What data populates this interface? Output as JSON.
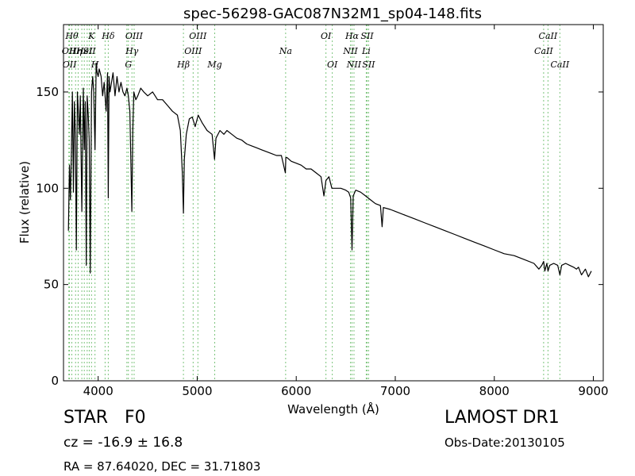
{
  "chart_data": {
    "type": "line",
    "title": "spec-56298-GAC087N32M1_sp04-148.fits",
    "xlabel": "Wavelength (Å)",
    "ylabel": "Flux (relative)",
    "xlim": [
      3650,
      9100
    ],
    "ylim": [
      0,
      185
    ],
    "xticks": [
      4000,
      5000,
      6000,
      7000,
      8000,
      9000
    ],
    "yticks": [
      0,
      50,
      100,
      150
    ],
    "grid": false,
    "line_color": "#000000",
    "marker_line_color": "#7cc47c",
    "series": [
      {
        "x": [
          3700,
          3710,
          3720,
          3730,
          3740,
          3750,
          3760,
          3770,
          3780,
          3790,
          3800,
          3810,
          3820,
          3835,
          3850,
          3860,
          3870,
          3880,
          3889,
          3900,
          3910,
          3920,
          3933,
          3945,
          3955,
          3968,
          3980,
          3990,
          4000,
          4010,
          4020,
          4030,
          4045,
          4060,
          4080,
          4095,
          4102,
          4110,
          4120,
          4135,
          4150,
          4170,
          4190,
          4210,
          4230,
          4250,
          4270,
          4290,
          4305,
          4320,
          4340,
          4350,
          4360,
          4380,
          4400,
          4430,
          4460,
          4500,
          4550,
          4600,
          4650,
          4700,
          4750,
          4800,
          4830,
          4850,
          4861,
          4870,
          4890,
          4920,
          4950,
          4980,
          5010,
          5050,
          5100,
          5150,
          5175,
          5190,
          5230,
          5270,
          5300,
          5350,
          5400,
          5450,
          5500,
          5550,
          5600,
          5650,
          5700,
          5750,
          5800,
          5850,
          5890,
          5895,
          5905,
          5950,
          6000,
          6050,
          6100,
          6150,
          6200,
          6250,
          6280,
          6300,
          6330,
          6360,
          6400,
          6450,
          6500,
          6530,
          6550,
          6563,
          6575,
          6600,
          6650,
          6700,
          6750,
          6800,
          6850,
          6867,
          6880,
          6950,
          7000,
          7100,
          7200,
          7300,
          7400,
          7500,
          7600,
          7700,
          7800,
          7900,
          8000,
          8100,
          8200,
          8300,
          8400,
          8450,
          8480,
          8498,
          8510,
          8530,
          8542,
          8560,
          8600,
          8640,
          8662,
          8680,
          8720,
          8760,
          8800,
          8830,
          8850,
          8880,
          8920,
          8950,
          8980
        ],
        "values": [
          78,
          112,
          94,
          120,
          150,
          98,
          145,
          128,
          68,
          150,
          140,
          128,
          148,
          88,
          152,
          120,
          145,
          60,
          148,
          138,
          125,
          56,
          150,
          158,
          150,
          120,
          165,
          160,
          158,
          162,
          160,
          158,
          148,
          155,
          140,
          160,
          95,
          158,
          150,
          155,
          160,
          148,
          158,
          150,
          155,
          150,
          148,
          152,
          148,
          140,
          88,
          130,
          150,
          146,
          148,
          152,
          150,
          148,
          150,
          146,
          146,
          143,
          140,
          138,
          130,
          108,
          87,
          115,
          128,
          136,
          137,
          132,
          138,
          134,
          130,
          128,
          115,
          126,
          130,
          128,
          130,
          128,
          126,
          125,
          123,
          122,
          121,
          120,
          119,
          118,
          117,
          117,
          108,
          116,
          116,
          114,
          113,
          112,
          110,
          110,
          108,
          106,
          96,
          104,
          106,
          100,
          100,
          100,
          99,
          98,
          95,
          68,
          96,
          99,
          98,
          96,
          94,
          92,
          91,
          80,
          90,
          89,
          88,
          86,
          84,
          82,
          80,
          78,
          76,
          74,
          72,
          70,
          68,
          66,
          65,
          63,
          61,
          58,
          60,
          62,
          57,
          61,
          57,
          60,
          61,
          60,
          55,
          60,
          61,
          60,
          59,
          58,
          59,
          55,
          58,
          54,
          57
        ]
      }
    ],
    "line_markers": [
      {
        "x": 3704,
        "label": "OII",
        "row": 1
      },
      {
        "x": 3711,
        "label": "OII",
        "row": 2
      },
      {
        "x": 3734,
        "label": "Hθ",
        "row": 0
      },
      {
        "x": 3772,
        "label": "Hη",
        "row": 1
      },
      {
        "x": 3798,
        "label": "",
        "row": -1
      },
      {
        "x": 3835,
        "label": "",
        "row": -1
      },
      {
        "x": 3860,
        "label": "HeI",
        "row": 1
      },
      {
        "x": 3889,
        "label": "",
        "row": -1
      },
      {
        "x": 3910,
        "label": "SII",
        "row": 1
      },
      {
        "x": 3933,
        "label": "K",
        "row": 0
      },
      {
        "x": 3968,
        "label": "H",
        "row": 2
      },
      {
        "x": 4070,
        "label": "",
        "row": -1
      },
      {
        "x": 4102,
        "label": "Hδ",
        "row": 0
      },
      {
        "x": 4290,
        "label": "",
        "row": -1
      },
      {
        "x": 4305,
        "label": "G",
        "row": 2
      },
      {
        "x": 4341,
        "label": "Hγ",
        "row": 1
      },
      {
        "x": 4363,
        "label": "OIII",
        "row": 0
      },
      {
        "x": 4861,
        "label": "Hβ",
        "row": 2
      },
      {
        "x": 4959,
        "label": "OIII",
        "row": 1
      },
      {
        "x": 5007,
        "label": "OIII",
        "row": 0
      },
      {
        "x": 5177,
        "label": "Mg",
        "row": 2
      },
      {
        "x": 5893,
        "label": "Na",
        "row": 1
      },
      {
        "x": 6300,
        "label": "OI",
        "row": 0
      },
      {
        "x": 6364,
        "label": "OI",
        "row": 2
      },
      {
        "x": 6548,
        "label": "NII",
        "row": 1
      },
      {
        "x": 6563,
        "label": "Hα",
        "row": 0
      },
      {
        "x": 6583,
        "label": "NII",
        "row": 2
      },
      {
        "x": 6707,
        "label": "Li",
        "row": 1
      },
      {
        "x": 6716,
        "label": "SII",
        "row": 0
      },
      {
        "x": 6731,
        "label": "SII",
        "row": 2
      },
      {
        "x": 8498,
        "label": "CaII",
        "row": 1
      },
      {
        "x": 8542,
        "label": "CaII",
        "row": 0
      },
      {
        "x": 8662,
        "label": "CaII",
        "row": 2
      }
    ]
  },
  "info": {
    "object_type": "STAR   F0",
    "survey": "LAMOST DR1",
    "redshift": "cz = -16.9 ± 16.8",
    "obs_date": "Obs-Date:20130105",
    "coords": "RA = 87.64020, DEC = 31.71803"
  }
}
